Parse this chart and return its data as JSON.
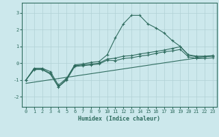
{
  "xlabel": "Humidex (Indice chaleur)",
  "ylabel": "",
  "background_color": "#cce8ec",
  "grid_color": "#b0d0d4",
  "line_color": "#2e6b5e",
  "xlim": [
    -0.5,
    23.5
  ],
  "ylim": [
    -2.6,
    3.6
  ],
  "yticks": [
    -2,
    -1,
    0,
    1,
    2,
    3
  ],
  "xticks": [
    0,
    1,
    2,
    3,
    4,
    5,
    6,
    7,
    8,
    9,
    10,
    11,
    12,
    13,
    14,
    15,
    16,
    17,
    18,
    19,
    20,
    21,
    22,
    23
  ],
  "line1_x": [
    0,
    1,
    2,
    3,
    4,
    5,
    6,
    7,
    8,
    9,
    10,
    11,
    12,
    13,
    14,
    15,
    16,
    17,
    18,
    19,
    20,
    21,
    22,
    23
  ],
  "line1_y": [
    -1.0,
    -0.3,
    -0.3,
    -0.5,
    -1.3,
    -0.9,
    -0.1,
    -0.05,
    0.05,
    0.1,
    0.5,
    1.5,
    2.35,
    2.85,
    2.85,
    2.35,
    2.1,
    1.8,
    1.35,
    1.0,
    0.5,
    0.42,
    0.42,
    0.45
  ],
  "line2_x": [
    0,
    1,
    2,
    3,
    4,
    5,
    6,
    7,
    8,
    9,
    10,
    11,
    12,
    13,
    14,
    15,
    16,
    17,
    18,
    19,
    20,
    21,
    22,
    23
  ],
  "line2_y": [
    -1.0,
    -0.35,
    -0.35,
    -0.6,
    -1.4,
    -0.95,
    -0.15,
    -0.1,
    -0.05,
    0.0,
    0.25,
    0.3,
    0.42,
    0.45,
    0.55,
    0.62,
    0.7,
    0.78,
    0.88,
    0.98,
    0.48,
    0.38,
    0.38,
    0.42
  ],
  "line3_x": [
    0,
    1,
    2,
    3,
    4,
    5,
    6,
    7,
    8,
    9,
    10,
    11,
    12,
    13,
    14,
    15,
    16,
    17,
    18,
    19,
    20,
    21,
    22,
    23
  ],
  "line3_y": [
    -1.0,
    -0.38,
    -0.38,
    -0.65,
    -1.42,
    -1.0,
    -0.2,
    -0.15,
    -0.1,
    -0.05,
    0.18,
    0.15,
    0.28,
    0.32,
    0.42,
    0.48,
    0.58,
    0.68,
    0.73,
    0.82,
    0.38,
    0.28,
    0.28,
    0.32
  ],
  "line4_x": [
    0,
    23
  ],
  "line4_y": [
    -1.2,
    0.45
  ]
}
